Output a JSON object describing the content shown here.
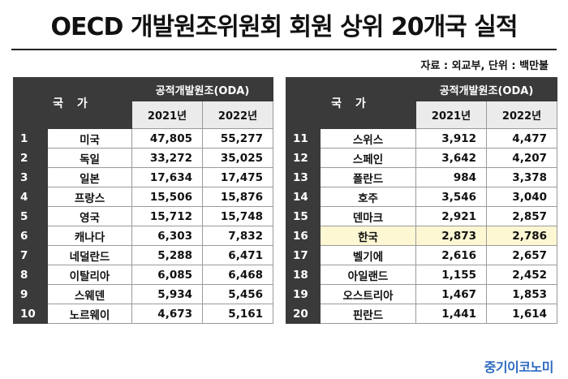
{
  "title": "OECD 개발원조위원회 회원 상위 20개국 실적",
  "source": "자료 : 외교부, 단위 : 백만불",
  "headers": {
    "country": "국 가",
    "group": "공적개발원조(ODA)",
    "y2021": "2021년",
    "y2022": "2022년"
  },
  "left_rows": [
    {
      "rank": "1",
      "country": "미국",
      "v2021": "47,805",
      "v2022": "55,277"
    },
    {
      "rank": "2",
      "country": "독일",
      "v2021": "33,272",
      "v2022": "35,025"
    },
    {
      "rank": "3",
      "country": "일본",
      "v2021": "17,634",
      "v2022": "17,475"
    },
    {
      "rank": "4",
      "country": "프랑스",
      "v2021": "15,506",
      "v2022": "15,876"
    },
    {
      "rank": "5",
      "country": "영국",
      "v2021": "15,712",
      "v2022": "15,748"
    },
    {
      "rank": "6",
      "country": "캐나다",
      "v2021": "6,303",
      "v2022": "7,832"
    },
    {
      "rank": "7",
      "country": "네덜란드",
      "v2021": "5,288",
      "v2022": "6,471"
    },
    {
      "rank": "8",
      "country": "이탈리아",
      "v2021": "6,085",
      "v2022": "6,468"
    },
    {
      "rank": "9",
      "country": "스웨덴",
      "v2021": "5,934",
      "v2022": "5,456"
    },
    {
      "rank": "10",
      "country": "노르웨이",
      "v2021": "4,673",
      "v2022": "5,161"
    }
  ],
  "right_rows": [
    {
      "rank": "11",
      "country": "스위스",
      "v2021": "3,912",
      "v2022": "4,477"
    },
    {
      "rank": "12",
      "country": "스페인",
      "v2021": "3,642",
      "v2022": "4,207"
    },
    {
      "rank": "13",
      "country": "폴란드",
      "v2021": "984",
      "v2022": "3,378"
    },
    {
      "rank": "14",
      "country": "호주",
      "v2021": "3,546",
      "v2022": "3,040"
    },
    {
      "rank": "15",
      "country": "덴마크",
      "v2021": "2,921",
      "v2022": "2,857"
    },
    {
      "rank": "16",
      "country": "한국",
      "v2021": "2,873",
      "v2022": "2,786",
      "highlight": true
    },
    {
      "rank": "17",
      "country": "벨기에",
      "v2021": "2,616",
      "v2022": "2,657"
    },
    {
      "rank": "18",
      "country": "아일랜드",
      "v2021": "1,155",
      "v2022": "2,452"
    },
    {
      "rank": "19",
      "country": "오스트리아",
      "v2021": "1,467",
      "v2022": "1,853"
    },
    {
      "rank": "20",
      "country": "핀란드",
      "v2021": "1,441",
      "v2022": "1,614"
    }
  ],
  "logo": "중기이코노미",
  "colors": {
    "header_bg": "#3a3a3a",
    "subheader_bg": "#ebebeb",
    "highlight_bg": "#fdf7d3",
    "logo": "#2e6bc0"
  }
}
